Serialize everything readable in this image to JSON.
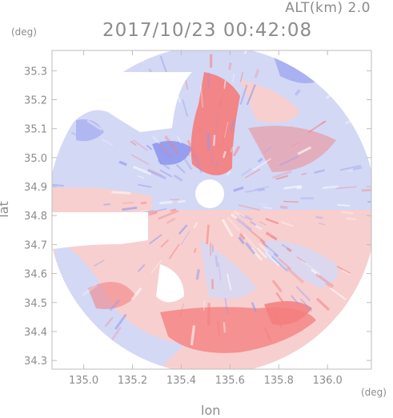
{
  "header": {
    "altitude": "ALT(km) 2.0",
    "timestamp": "2017/10/23 00:42:08"
  },
  "axes": {
    "lat_unit": "(deg)",
    "lon_unit": "(deg)",
    "lat_label": "lat",
    "lon_label": "lon",
    "lat_ticks": [
      "35.3",
      "35.2",
      "35.1",
      "35.0",
      "34.9",
      "34.8",
      "34.7",
      "34.6",
      "34.5",
      "34.4",
      "34.3"
    ],
    "lon_ticks": [
      "135.0",
      "135.2",
      "135.4",
      "135.6",
      "135.8",
      "136.0"
    ]
  },
  "map": {
    "lon_range": [
      134.87,
      136.18
    ],
    "lat_range": [
      34.27,
      35.37
    ],
    "radar_center": {
      "lon": 135.52,
      "lat": 34.86
    },
    "colors": {
      "approaching": "#8f98ee",
      "receding": "#f47c7c",
      "weak_blue": "#d3d8f5",
      "weak_red": "#f7cfcf",
      "background": "#ffffff",
      "frame": "#bdbdbd"
    }
  }
}
